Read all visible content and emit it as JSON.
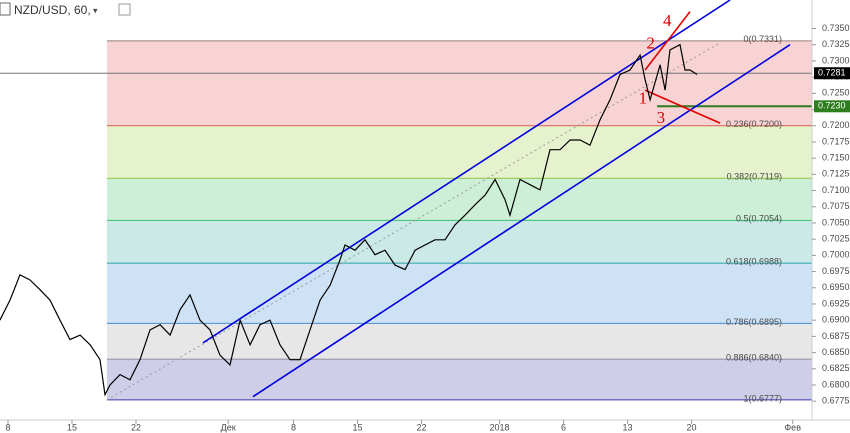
{
  "header": {
    "title": "NZD/USD, 60,"
  },
  "chart_data": {
    "type": "line",
    "color": "#000000",
    "xlim": [
      -0.625,
      62.81
    ],
    "ylim": [
      0.6746,
      0.7394
    ],
    "xticks": [
      {
        "value": 0,
        "label": "8"
      },
      {
        "value": 5,
        "label": "15"
      },
      {
        "value": 10,
        "label": "22"
      },
      {
        "value": 17.2,
        "label": "Дек"
      },
      {
        "value": 22.3,
        "label": "8"
      },
      {
        "value": 27.3,
        "label": "15"
      },
      {
        "value": 32.3,
        "label": "22"
      },
      {
        "value": 38.4,
        "label": "2018"
      },
      {
        "value": 43.4,
        "label": "6"
      },
      {
        "value": 48.4,
        "label": "13"
      },
      {
        "value": 53.4,
        "label": "20"
      },
      {
        "value": 61.3,
        "label": "Фев"
      }
    ],
    "yticks": [
      {
        "value": 0.6775,
        "label": "0.6775"
      },
      {
        "value": 0.68,
        "label": "0.6800"
      },
      {
        "value": 0.6825,
        "label": "0.6825"
      },
      {
        "value": 0.685,
        "label": "0.6850"
      },
      {
        "value": 0.6875,
        "label": "0.6875"
      },
      {
        "value": 0.69,
        "label": "0.6900"
      },
      {
        "value": 0.6925,
        "label": "0.6925"
      },
      {
        "value": 0.695,
        "label": "0.6950"
      },
      {
        "value": 0.6975,
        "label": "0.6975"
      },
      {
        "value": 0.7,
        "label": "0.7000"
      },
      {
        "value": 0.7025,
        "label": "0.7025"
      },
      {
        "value": 0.705,
        "label": "0.7050"
      },
      {
        "value": 0.7075,
        "label": "0.7075"
      },
      {
        "value": 0.71,
        "label": "0.7100"
      },
      {
        "value": 0.7125,
        "label": "0.7125"
      },
      {
        "value": 0.715,
        "label": "0.7150"
      },
      {
        "value": 0.7175,
        "label": "0.7175"
      },
      {
        "value": 0.72,
        "label": "0.7200"
      },
      {
        "value": 0.7225,
        "label": "0.7225"
      },
      {
        "value": 0.725,
        "label": "0.7250"
      },
      {
        "value": 0.7275,
        "label": "0.7275"
      },
      {
        "value": 0.73,
        "label": "0.7300"
      },
      {
        "value": 0.7325,
        "label": "0.7325"
      },
      {
        "value": 0.735,
        "label": "0.7350"
      }
    ],
    "x": [
      -0.63,
      0.16,
      0.94,
      1.72,
      2.5,
      3.28,
      4.06,
      4.84,
      5.63,
      6.41,
      7.19,
      7.58,
      7.97,
      8.75,
      9.53,
      10.31,
      11.09,
      11.88,
      12.66,
      13.44,
      14.22,
      15,
      15.78,
      16.56,
      17.34,
      18.13,
      18.91,
      19.69,
      20.47,
      21.25,
      22.03,
      22.81,
      23.59,
      24.38,
      25.16,
      25.94,
      26.33,
      27.11,
      27.89,
      28.67,
      29.45,
      30.23,
      31.02,
      31.8,
      32.58,
      33.36,
      34.14,
      34.92,
      35.7,
      36.48,
      37.27,
      38.05,
      38.83,
      39.22,
      40,
      40.78,
      41.56,
      42.34,
      43.13,
      43.91,
      44.69,
      45.47,
      46.25,
      47.03,
      47.81,
      48.59,
      49.38,
      49.77,
      50.16,
      50.94,
      51.33,
      51.72,
      52.5,
      52.89,
      53.28,
      53.83
    ],
    "values": [
      0.69,
      0.6931,
      0.697,
      0.6962,
      0.6947,
      0.6931,
      0.69,
      0.687,
      0.6877,
      0.6862,
      0.6839,
      0.6785,
      0.68,
      0.6816,
      0.6808,
      0.6839,
      0.6885,
      0.6893,
      0.6877,
      0.6916,
      0.6939,
      0.69,
      0.6885,
      0.6846,
      0.6831,
      0.69,
      0.6862,
      0.6893,
      0.69,
      0.6862,
      0.6839,
      0.6839,
      0.6885,
      0.6931,
      0.6954,
      0.6993,
      0.7016,
      0.7008,
      0.7024,
      0.7001,
      0.7008,
      0.6985,
      0.6978,
      0.7008,
      0.7016,
      0.7024,
      0.7024,
      0.7047,
      0.7062,
      0.7078,
      0.7093,
      0.7117,
      0.7086,
      0.7062,
      0.7117,
      0.7109,
      0.7101,
      0.7163,
      0.7163,
      0.7178,
      0.7178,
      0.717,
      0.7209,
      0.724,
      0.7279,
      0.7286,
      0.7309,
      0.7271,
      0.724,
      0.7294,
      0.7255,
      0.7317,
      0.7325,
      0.7286,
      0.7286,
      0.7279
    ],
    "last_price": {
      "value": 0.7281,
      "label": "0.7281"
    },
    "level_line": {
      "value": 0.723,
      "label": "0.7230",
      "x_start": 50.7,
      "color": "#2e7d1e"
    },
    "fib": {
      "x_start": 7.73,
      "levels": [
        {
          "label": "0(0.7331)",
          "price": 0.7331,
          "color": "#888888"
        },
        {
          "label": "0.236(0.7200)",
          "price": 0.72,
          "color": "#e05050"
        },
        {
          "label": "0.382(0.7119)",
          "price": 0.7119,
          "color": "#9cc83a"
        },
        {
          "label": "0.5(0.7054)",
          "price": 0.7054,
          "color": "#3cc060"
        },
        {
          "label": "0.618(0.6988)",
          "price": 0.6988,
          "color": "#2aa8a0"
        },
        {
          "label": "0.786(0.6895)",
          "price": 0.6895,
          "color": "#3a8ad8"
        },
        {
          "label": "0.886(0.6840)",
          "price": 0.684,
          "color": "#a0a0a0"
        },
        {
          "label": "1(0.6777)",
          "price": 0.6777,
          "color": "#3a3aa8"
        }
      ]
    },
    "trend_lines": [
      {
        "x": [
          15.23,
          56.41
        ],
        "y": [
          0.6865,
          0.7394
        ],
        "color": "#0000e0",
        "dash": false
      },
      {
        "x": [
          19.14,
          61.09
        ],
        "y": [
          0.6782,
          0.7325
        ],
        "color": "#0000e0",
        "dash": false
      },
      {
        "x": [
          7.73,
          55.63
        ],
        "y": [
          0.6777,
          0.7328
        ],
        "color": "#999999",
        "dash": true
      },
      {
        "x": [
          49.77,
          53.28
        ],
        "y": [
          0.7286,
          0.7376
        ],
        "color": "#e00000",
        "dash": false
      },
      {
        "x": [
          49.77,
          55.63
        ],
        "y": [
          0.7255,
          0.7204
        ],
        "color": "#e00000",
        "dash": false
      }
    ],
    "annotations": [
      {
        "text": "1",
        "x": 49.6,
        "y": 0.724
      },
      {
        "text": "2",
        "x": 50.2,
        "y": 0.7325
      },
      {
        "text": "3",
        "x": 51.0,
        "y": 0.721
      },
      {
        "text": "4",
        "x": 51.5,
        "y": 0.736
      }
    ]
  }
}
